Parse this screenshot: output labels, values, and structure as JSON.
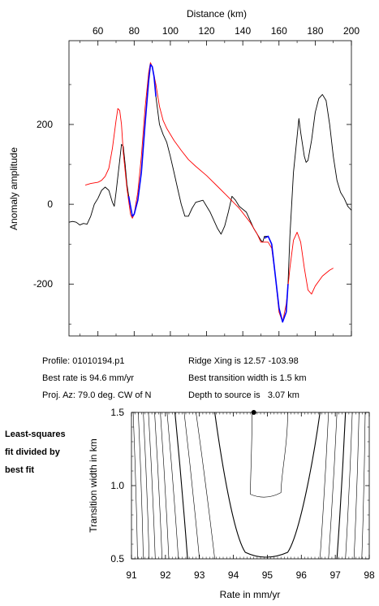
{
  "info": {
    "profile": "Profile: 01010194.p1",
    "best_rate": "Best rate is 94.6 mm/yr",
    "proj_az": "Proj. Az: 79.0 deg. CW of N",
    "ridge_xing": "Ridge Xing is 12.57 -103.98",
    "best_width": "Best transition width is 1.5 km",
    "depth": "Depth to source is   3.07 km"
  },
  "side_note": [
    "Least-squares",
    "fit divided by",
    "best fit"
  ],
  "colors": {
    "observed": "#000000",
    "model": "#ff0000",
    "fit_window": "#0000ff"
  },
  "chart_data": [
    {
      "type": "line",
      "xlabel": "Distance (km)",
      "ylabel": "Anomaly amplitude",
      "xlim": [
        44,
        200
      ],
      "ylim": [
        -330,
        410
      ],
      "xticks": [
        60,
        80,
        100,
        120,
        140,
        160,
        180,
        200
      ],
      "yticks": [
        -200,
        0,
        200
      ],
      "x_axis_position": "top",
      "series": [
        {
          "role": "observed",
          "color": "#000000",
          "points": [
            [
              44,
              -45
            ],
            [
              46,
              -43
            ],
            [
              48,
              -45
            ],
            [
              50,
              -52
            ],
            [
              52,
              -48
            ],
            [
              54,
              -50
            ],
            [
              56,
              -30
            ],
            [
              58,
              0
            ],
            [
              60,
              15
            ],
            [
              62,
              35
            ],
            [
              64,
              43
            ],
            [
              66,
              35
            ],
            [
              68,
              5
            ],
            [
              69,
              -5
            ],
            [
              70,
              30
            ],
            [
              72,
              110
            ],
            [
              73,
              150
            ],
            [
              74,
              145
            ],
            [
              75,
              100
            ],
            [
              76,
              50
            ],
            [
              77,
              20
            ],
            [
              78,
              -5
            ],
            [
              79,
              -30
            ],
            [
              80,
              -25
            ],
            [
              82,
              10
            ],
            [
              84,
              80
            ],
            [
              86,
              200
            ],
            [
              88,
              310
            ],
            [
              89,
              350
            ],
            [
              90,
              345
            ],
            [
              91,
              320
            ],
            [
              92,
              270
            ],
            [
              94,
              200
            ],
            [
              96,
              175
            ],
            [
              98,
              155
            ],
            [
              100,
              120
            ],
            [
              102,
              80
            ],
            [
              104,
              40
            ],
            [
              106,
              0
            ],
            [
              108,
              -30
            ],
            [
              110,
              -30
            ],
            [
              112,
              -10
            ],
            [
              114,
              5
            ],
            [
              118,
              10
            ],
            [
              122,
              -20
            ],
            [
              126,
              -60
            ],
            [
              128,
              -75
            ],
            [
              130,
              -55
            ],
            [
              132,
              -20
            ],
            [
              134,
              20
            ],
            [
              136,
              10
            ],
            [
              138,
              -5
            ],
            [
              142,
              -20
            ],
            [
              146,
              -60
            ],
            [
              150,
              -90
            ],
            [
              151,
              -95
            ],
            [
              152,
              -80
            ],
            [
              154,
              -80
            ],
            [
              156,
              -100
            ],
            [
              158,
              -180
            ],
            [
              160,
              -260
            ],
            [
              162,
              -295
            ],
            [
              164,
              -270
            ],
            [
              165,
              -200
            ],
            [
              166,
              -80
            ],
            [
              168,
              80
            ],
            [
              170,
              170
            ],
            [
              171,
              215
            ],
            [
              172,
              180
            ],
            [
              174,
              120
            ],
            [
              175,
              105
            ],
            [
              176,
              110
            ],
            [
              178,
              160
            ],
            [
              180,
              230
            ],
            [
              182,
              265
            ],
            [
              184,
              275
            ],
            [
              186,
              260
            ],
            [
              188,
              200
            ],
            [
              190,
              120
            ],
            [
              192,
              60
            ],
            [
              194,
              30
            ],
            [
              196,
              15
            ],
            [
              198,
              -5
            ],
            [
              200,
              -15
            ]
          ]
        },
        {
          "role": "model",
          "color": "#ff0000",
          "points": [
            [
              53,
              48
            ],
            [
              56,
              52
            ],
            [
              60,
              55
            ],
            [
              62,
              60
            ],
            [
              64,
              70
            ],
            [
              66,
              90
            ],
            [
              68,
              140
            ],
            [
              70,
              210
            ],
            [
              71,
              240
            ],
            [
              72,
              235
            ],
            [
              73,
              200
            ],
            [
              74,
              130
            ],
            [
              76,
              40
            ],
            [
              78,
              -25
            ],
            [
              79,
              -35
            ],
            [
              80,
              -25
            ],
            [
              82,
              30
            ],
            [
              84,
              120
            ],
            [
              86,
              240
            ],
            [
              88,
              330
            ],
            [
              89,
              355
            ],
            [
              90,
              345
            ],
            [
              92,
              300
            ],
            [
              94,
              245
            ],
            [
              96,
              210
            ],
            [
              98,
              190
            ],
            [
              102,
              160
            ],
            [
              106,
              135
            ],
            [
              110,
              112
            ],
            [
              114,
              95
            ],
            [
              120,
              72
            ],
            [
              126,
              45
            ],
            [
              132,
              18
            ],
            [
              138,
              -10
            ],
            [
              144,
              -45
            ],
            [
              148,
              -75
            ],
            [
              150,
              -95
            ],
            [
              154,
              -95
            ],
            [
              156,
              -110
            ],
            [
              158,
              -180
            ],
            [
              160,
              -270
            ],
            [
              162,
              -295
            ],
            [
              164,
              -250
            ],
            [
              166,
              -160
            ],
            [
              168,
              -90
            ],
            [
              170,
              -70
            ],
            [
              172,
              -95
            ],
            [
              174,
              -160
            ],
            [
              176,
              -215
            ],
            [
              178,
              -225
            ],
            [
              180,
              -205
            ],
            [
              184,
              -180
            ],
            [
              188,
              -165
            ],
            [
              190,
              -160
            ]
          ]
        },
        {
          "role": "fit_window",
          "color": "#0000ff",
          "segments": [
            [
              [
                77,
                20
              ],
              [
                78,
                -5
              ],
              [
                79,
                -30
              ],
              [
                80,
                -25
              ],
              [
                82,
                10
              ],
              [
                84,
                80
              ],
              [
                86,
                200
              ],
              [
                88,
                310
              ],
              [
                89,
                350
              ],
              [
                90,
                345
              ],
              [
                91,
                320
              ],
              [
                92,
                270
              ]
            ],
            [
              [
                152,
                -85
              ],
              [
                154,
                -80
              ],
              [
                156,
                -100
              ],
              [
                158,
                -180
              ],
              [
                160,
                -260
              ],
              [
                162,
                -295
              ],
              [
                164,
                -270
              ],
              [
                165,
                -200
              ]
            ]
          ]
        }
      ]
    },
    {
      "type": "contour",
      "xlabel": "Rate in mm/yr",
      "ylabel": "Transition width in km",
      "xlim": [
        91,
        98
      ],
      "ylim": [
        0.5,
        1.5
      ],
      "xticks": [
        91,
        92,
        93,
        94,
        95,
        96,
        97,
        98
      ],
      "yticks": [
        0.5,
        1.0,
        1.5
      ],
      "best_fit": {
        "rate": 94.6,
        "width": 1.5
      },
      "contours": [
        {
          "kind": "line",
          "x_bottom": 91.18,
          "x_top": 91.05
        },
        {
          "kind": "line",
          "x_bottom": 91.35,
          "x_top": 91.2
        },
        {
          "kind": "line",
          "x_bottom": 91.52,
          "x_top": 91.35
        },
        {
          "kind": "line",
          "x_bottom": 91.7,
          "x_top": 91.5
        },
        {
          "kind": "line",
          "x_bottom": 91.9,
          "x_top": 91.68
        },
        {
          "kind": "line",
          "x_bottom": 92.1,
          "x_top": 91.85
        },
        {
          "kind": "line",
          "x_bottom": 92.38,
          "x_top": 92.05
        },
        {
          "kind": "line",
          "x_bottom": 92.65,
          "x_top": 92.28
        },
        {
          "kind": "line",
          "x_bottom": 93.0,
          "x_top": 92.55
        },
        {
          "kind": "line",
          "x_bottom": 93.45,
          "x_top": 92.9
        },
        {
          "kind": "u",
          "left_bottom": 94.0,
          "left_top": 93.45,
          "right_bottom": 95.95,
          "right_top": 96.55,
          "vertex_rate": 94.95,
          "vertex_width": 0.5
        },
        {
          "kind": "u",
          "left_bottom": 94.5,
          "left_top": 94.55,
          "right_bottom": 95.4,
          "right_top": 95.6,
          "vertex_rate": 94.95,
          "vertex_width": 0.93
        },
        {
          "kind": "line",
          "x_bottom": 96.55,
          "x_top": 96.8
        },
        {
          "kind": "line",
          "x_bottom": 96.8,
          "x_top": 97.05
        },
        {
          "kind": "line",
          "x_bottom": 97.05,
          "x_top": 97.3
        },
        {
          "kind": "line",
          "x_bottom": 97.3,
          "x_top": 97.5
        },
        {
          "kind": "line",
          "x_bottom": 97.55,
          "x_top": 97.7
        },
        {
          "kind": "line",
          "x_bottom": 97.78,
          "x_top": 97.88
        }
      ]
    }
  ]
}
